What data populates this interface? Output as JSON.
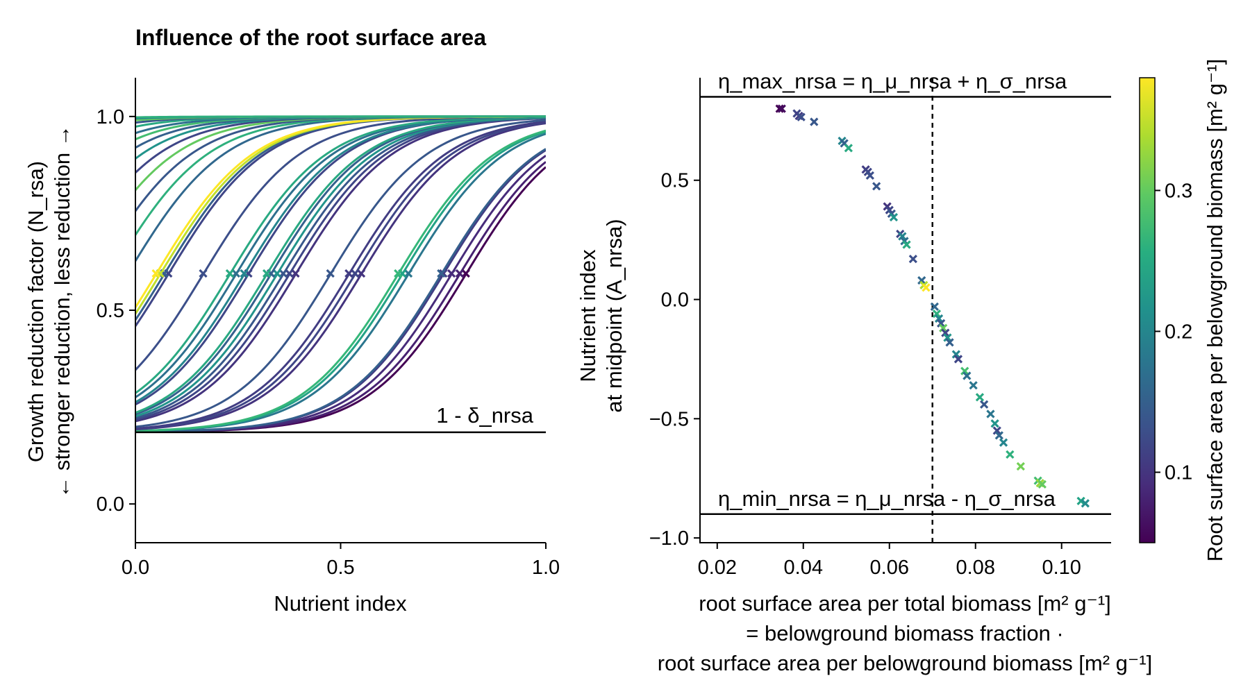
{
  "chart_data": [
    {
      "type": "line",
      "title": "Influence of the root surface area",
      "xlabel": "Nutrient index",
      "ylabel_lines": [
        "Growth reduction factor (N_rsa)",
        "← stronger reduction, less reduction →"
      ],
      "xlim": [
        0,
        1
      ],
      "ylim": [
        -0.1,
        1.1
      ],
      "xticks": [
        {
          "v": 0.0,
          "label": "0.0"
        },
        {
          "v": 0.5,
          "label": "0.5"
        },
        {
          "v": 1.0,
          "label": "1.0"
        }
      ],
      "yticks": [
        {
          "v": 0.0,
          "label": "0.0"
        },
        {
          "v": 0.5,
          "label": "0.5"
        },
        {
          "v": 1.0,
          "label": "1.0"
        }
      ],
      "grid": false,
      "hline": {
        "y": 0.185,
        "label": "1 - δ_nrsa"
      },
      "curve_model": "logistic: y = L + (1 - L) / (1 + exp(-k (x - x0)))",
      "curve_min": 0.185,
      "midpoint_marker_y": 0.595,
      "series": [
        {
          "color_value": 0.05,
          "slope": 8.5,
          "midpoint": 0.805
        },
        {
          "color_value": 0.08,
          "slope": 8.5,
          "midpoint": 0.79
        },
        {
          "color_value": 0.09,
          "slope": 8.5,
          "midpoint": 0.77
        },
        {
          "color_value": 0.11,
          "slope": 8.5,
          "midpoint": 0.75
        },
        {
          "color_value": 0.15,
          "slope": 8.5,
          "midpoint": 0.745
        },
        {
          "color_value": 0.18,
          "slope": 8.5,
          "midpoint": 0.665
        },
        {
          "color_value": 0.24,
          "slope": 8.5,
          "midpoint": 0.65
        },
        {
          "color_value": 0.27,
          "slope": 8.5,
          "midpoint": 0.64
        },
        {
          "color_value": 0.1,
          "slope": 8.5,
          "midpoint": 0.55
        },
        {
          "color_value": 0.12,
          "slope": 8.5,
          "midpoint": 0.535
        },
        {
          "color_value": 0.11,
          "slope": 8.5,
          "midpoint": 0.52
        },
        {
          "color_value": 0.14,
          "slope": 8.5,
          "midpoint": 0.475
        },
        {
          "color_value": 0.1,
          "slope": 8.5,
          "midpoint": 0.39
        },
        {
          "color_value": 0.12,
          "slope": 8.5,
          "midpoint": 0.375
        },
        {
          "color_value": 0.14,
          "slope": 8.5,
          "midpoint": 0.36
        },
        {
          "color_value": 0.22,
          "slope": 8.5,
          "midpoint": 0.345
        },
        {
          "color_value": 0.15,
          "slope": 8.5,
          "midpoint": 0.33
        },
        {
          "color_value": 0.25,
          "slope": 8.5,
          "midpoint": 0.32
        },
        {
          "color_value": 0.12,
          "slope": 8.5,
          "midpoint": 0.275
        },
        {
          "color_value": 0.2,
          "slope": 8.5,
          "midpoint": 0.265
        },
        {
          "color_value": 0.17,
          "slope": 8.5,
          "midpoint": 0.245
        },
        {
          "color_value": 0.25,
          "slope": 8.5,
          "midpoint": 0.23
        },
        {
          "color_value": 0.13,
          "slope": 8.5,
          "midpoint": 0.165
        },
        {
          "color_value": 0.12,
          "slope": 8.5,
          "midpoint": 0.08
        },
        {
          "color_value": 0.15,
          "slope": 8.5,
          "midpoint": 0.07
        },
        {
          "color_value": 0.35,
          "slope": 8.5,
          "midpoint": 0.06
        },
        {
          "color_value": 0.38,
          "slope": 8.5,
          "midpoint": 0.05
        },
        {
          "color_value": 0.16,
          "slope": 8.5,
          "midpoint": -0.02
        },
        {
          "color_value": 0.26,
          "slope": 8.5,
          "midpoint": -0.06
        },
        {
          "color_value": 0.14,
          "slope": 8.5,
          "midpoint": -0.1
        },
        {
          "color_value": 0.3,
          "slope": 8.5,
          "midpoint": -0.14
        },
        {
          "color_value": 0.12,
          "slope": 8.5,
          "midpoint": -0.18
        },
        {
          "color_value": 0.22,
          "slope": 8.5,
          "midpoint": -0.22
        },
        {
          "color_value": 0.15,
          "slope": 8.5,
          "midpoint": -0.26
        },
        {
          "color_value": 0.28,
          "slope": 8.5,
          "midpoint": -0.3
        },
        {
          "color_value": 0.17,
          "slope": 8.5,
          "midpoint": -0.34
        },
        {
          "color_value": 0.25,
          "slope": 8.5,
          "midpoint": -0.4
        },
        {
          "color_value": 0.14,
          "slope": 8.5,
          "midpoint": -0.46
        },
        {
          "color_value": 0.3,
          "slope": 8.5,
          "midpoint": -0.52
        },
        {
          "color_value": 0.2,
          "slope": 8.5,
          "midpoint": -0.6
        },
        {
          "color_value": 0.26,
          "slope": 8.5,
          "midpoint": -0.7
        }
      ]
    },
    {
      "type": "scatter",
      "ylabel_lines": [
        "Nutrient index",
        "at midpoint (A_nrsa)"
      ],
      "xlabel_lines": [
        "root surface area per total biomass [m² g⁻¹]",
        "= belowground biomass fraction ·",
        "root surface area per belowground biomass [m² g⁻¹]"
      ],
      "xlim": [
        0.016,
        0.1115
      ],
      "ylim": [
        -1.02,
        0.93
      ],
      "xticks": [
        {
          "v": 0.02,
          "label": "0.02"
        },
        {
          "v": 0.04,
          "label": "0.04"
        },
        {
          "v": 0.06,
          "label": "0.06"
        },
        {
          "v": 0.08,
          "label": "0.08"
        },
        {
          "v": 0.1,
          "label": "0.10"
        }
      ],
      "yticks": [
        {
          "v": -1.0,
          "label": "−1.0"
        },
        {
          "v": -0.5,
          "label": "−0.5"
        },
        {
          "v": 0.0,
          "label": "0.0"
        },
        {
          "v": 0.5,
          "label": "0.5"
        }
      ],
      "grid": false,
      "marker": "x",
      "hlines": [
        {
          "y": 0.85,
          "label": "η_max_nrsa = η_μ_nrsa + η_σ_nrsa"
        },
        {
          "y": -0.9,
          "label": "η_min_nrsa = η_μ_nrsa - η_σ_nrsa"
        }
      ],
      "vline": {
        "x": 0.07,
        "style": "dashed"
      },
      "points": [
        {
          "x": 0.0345,
          "y": 0.8,
          "c": 0.05
        },
        {
          "x": 0.035,
          "y": 0.8,
          "c": 0.06
        },
        {
          "x": 0.0385,
          "y": 0.78,
          "c": 0.12
        },
        {
          "x": 0.039,
          "y": 0.77,
          "c": 0.11
        },
        {
          "x": 0.0395,
          "y": 0.765,
          "c": 0.13
        },
        {
          "x": 0.0425,
          "y": 0.745,
          "c": 0.14
        },
        {
          "x": 0.049,
          "y": 0.665,
          "c": 0.2
        },
        {
          "x": 0.0495,
          "y": 0.655,
          "c": 0.15
        },
        {
          "x": 0.0505,
          "y": 0.635,
          "c": 0.25
        },
        {
          "x": 0.0545,
          "y": 0.545,
          "c": 0.11
        },
        {
          "x": 0.055,
          "y": 0.535,
          "c": 0.12
        },
        {
          "x": 0.0555,
          "y": 0.52,
          "c": 0.13
        },
        {
          "x": 0.057,
          "y": 0.475,
          "c": 0.14
        },
        {
          "x": 0.0595,
          "y": 0.39,
          "c": 0.1
        },
        {
          "x": 0.06,
          "y": 0.375,
          "c": 0.12
        },
        {
          "x": 0.0605,
          "y": 0.36,
          "c": 0.14
        },
        {
          "x": 0.061,
          "y": 0.345,
          "c": 0.22
        },
        {
          "x": 0.0625,
          "y": 0.275,
          "c": 0.12
        },
        {
          "x": 0.063,
          "y": 0.265,
          "c": 0.2
        },
        {
          "x": 0.0635,
          "y": 0.245,
          "c": 0.17
        },
        {
          "x": 0.064,
          "y": 0.23,
          "c": 0.25
        },
        {
          "x": 0.0655,
          "y": 0.17,
          "c": 0.13
        },
        {
          "x": 0.0675,
          "y": 0.08,
          "c": 0.16
        },
        {
          "x": 0.068,
          "y": 0.06,
          "c": 0.34
        },
        {
          "x": 0.0685,
          "y": 0.05,
          "c": 0.38
        },
        {
          "x": 0.0705,
          "y": -0.03,
          "c": 0.16
        },
        {
          "x": 0.071,
          "y": -0.06,
          "c": 0.26
        },
        {
          "x": 0.0715,
          "y": -0.08,
          "c": 0.2
        },
        {
          "x": 0.072,
          "y": -0.1,
          "c": 0.14
        },
        {
          "x": 0.0725,
          "y": -0.12,
          "c": 0.3
        },
        {
          "x": 0.073,
          "y": -0.14,
          "c": 0.12
        },
        {
          "x": 0.0735,
          "y": -0.16,
          "c": 0.22
        },
        {
          "x": 0.074,
          "y": -0.18,
          "c": 0.15
        },
        {
          "x": 0.0755,
          "y": -0.23,
          "c": 0.2
        },
        {
          "x": 0.076,
          "y": -0.25,
          "c": 0.12
        },
        {
          "x": 0.0775,
          "y": -0.3,
          "c": 0.28
        },
        {
          "x": 0.078,
          "y": -0.32,
          "c": 0.17
        },
        {
          "x": 0.0795,
          "y": -0.36,
          "c": 0.18
        },
        {
          "x": 0.081,
          "y": -0.41,
          "c": 0.25
        },
        {
          "x": 0.082,
          "y": -0.44,
          "c": 0.14
        },
        {
          "x": 0.0835,
          "y": -0.48,
          "c": 0.18
        },
        {
          "x": 0.0845,
          "y": -0.52,
          "c": 0.22
        },
        {
          "x": 0.085,
          "y": -0.55,
          "c": 0.12
        },
        {
          "x": 0.0855,
          "y": -0.57,
          "c": 0.16
        },
        {
          "x": 0.0865,
          "y": -0.6,
          "c": 0.2
        },
        {
          "x": 0.088,
          "y": -0.65,
          "c": 0.26
        },
        {
          "x": 0.0905,
          "y": -0.7,
          "c": 0.31
        },
        {
          "x": 0.0945,
          "y": -0.76,
          "c": 0.28
        },
        {
          "x": 0.095,
          "y": -0.77,
          "c": 0.33
        },
        {
          "x": 0.0955,
          "y": -0.775,
          "c": 0.3
        },
        {
          "x": 0.1045,
          "y": -0.845,
          "c": 0.24
        },
        {
          "x": 0.1055,
          "y": -0.855,
          "c": 0.21
        }
      ]
    }
  ],
  "colorbar": {
    "label": "Root surface area per belowground biomass [m² g⁻¹]",
    "colormap": "viridis",
    "range": [
      0.05,
      0.38
    ],
    "ticks": [
      {
        "v": 0.1,
        "label": "0.1"
      },
      {
        "v": 0.2,
        "label": "0.2"
      },
      {
        "v": 0.3,
        "label": "0.3"
      }
    ]
  }
}
